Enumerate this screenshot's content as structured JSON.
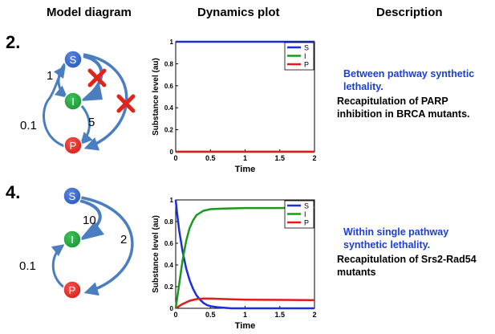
{
  "headers": {
    "model": "Model diagram",
    "dynamics": "Dynamics plot",
    "description": "Description"
  },
  "rows": [
    {
      "number": "2.",
      "nodes": {
        "S": "S",
        "I": "I",
        "P": "P"
      },
      "edge_labels": {
        "s_to_i": "1",
        "i_to_p": "5",
        "p_to_s": "0.1"
      },
      "desc_title": "Between pathway synthetic lethality.",
      "desc_body": "Recapitulation of PARP inhibition in BRCA mutants."
    },
    {
      "number": "4.",
      "nodes": {
        "S": "S",
        "I": "I",
        "P": "P"
      },
      "edge_labels": {
        "s_to_i": "10",
        "s_to_p": "2",
        "p_to_i": "0.1"
      },
      "desc_title": "Within single pathway synthetic lethality.",
      "desc_body": "Recapitulation of Srs2-Rad54 mutants"
    }
  ],
  "colors": {
    "S": "#2b5fc4",
    "I": "#1f9a3a",
    "P": "#d9231c",
    "arrow": "#4a7ec0",
    "cross": "#e3231a"
  },
  "chart_data": [
    {
      "type": "line",
      "xlabel": "Time",
      "ylabel": "Substance level (au)",
      "xlim": [
        0,
        2
      ],
      "ylim": [
        0,
        1
      ],
      "xticks": [
        "0",
        "0.5",
        "1",
        "1.5",
        "2"
      ],
      "yticks": [
        "0",
        "0.2",
        "0.4",
        "0.6",
        "0.8",
        "1"
      ],
      "legend_position": "top-right",
      "series": [
        {
          "name": "S",
          "color": "#1b2fd8",
          "x": [
            0,
            2
          ],
          "y": [
            1,
            1
          ]
        },
        {
          "name": "I",
          "color": "#1a9a1a",
          "x": [
            0,
            2
          ],
          "y": [
            0,
            0
          ]
        },
        {
          "name": "P",
          "color": "#e01b1b",
          "x": [
            0,
            2
          ],
          "y": [
            0,
            0
          ]
        }
      ]
    },
    {
      "type": "line",
      "xlabel": "Time",
      "ylabel": "Substance level (au)",
      "xlim": [
        0,
        2
      ],
      "ylim": [
        0,
        1
      ],
      "xticks": [
        "0",
        "0.5",
        "1",
        "1.5",
        "2"
      ],
      "yticks": [
        "0",
        "0.2",
        "0.4",
        "0.6",
        "0.8",
        "1"
      ],
      "legend_position": "top-right",
      "series": [
        {
          "name": "S",
          "color": "#1b2fd8",
          "x": [
            0,
            0.02,
            0.05,
            0.1,
            0.15,
            0.2,
            0.25,
            0.3,
            0.35,
            0.4,
            0.45,
            0.5,
            0.6,
            0.8,
            1,
            2
          ],
          "y": [
            1,
            0.88,
            0.72,
            0.52,
            0.37,
            0.26,
            0.18,
            0.12,
            0.08,
            0.05,
            0.03,
            0.02,
            0.01,
            0,
            0,
            0
          ]
        },
        {
          "name": "I",
          "color": "#1a9a1a",
          "x": [
            0,
            0.05,
            0.1,
            0.15,
            0.2,
            0.25,
            0.3,
            0.4,
            0.5,
            0.7,
            1,
            1.5,
            2
          ],
          "y": [
            0,
            0.22,
            0.45,
            0.62,
            0.74,
            0.81,
            0.86,
            0.9,
            0.915,
            0.92,
            0.925,
            0.925,
            0.93
          ]
        },
        {
          "name": "P",
          "color": "#e01b1b",
          "x": [
            0,
            0.05,
            0.1,
            0.2,
            0.3,
            0.4,
            0.5,
            0.7,
            1,
            1.5,
            2
          ],
          "y": [
            0,
            0.02,
            0.04,
            0.07,
            0.085,
            0.09,
            0.09,
            0.085,
            0.08,
            0.078,
            0.075
          ]
        }
      ]
    }
  ]
}
